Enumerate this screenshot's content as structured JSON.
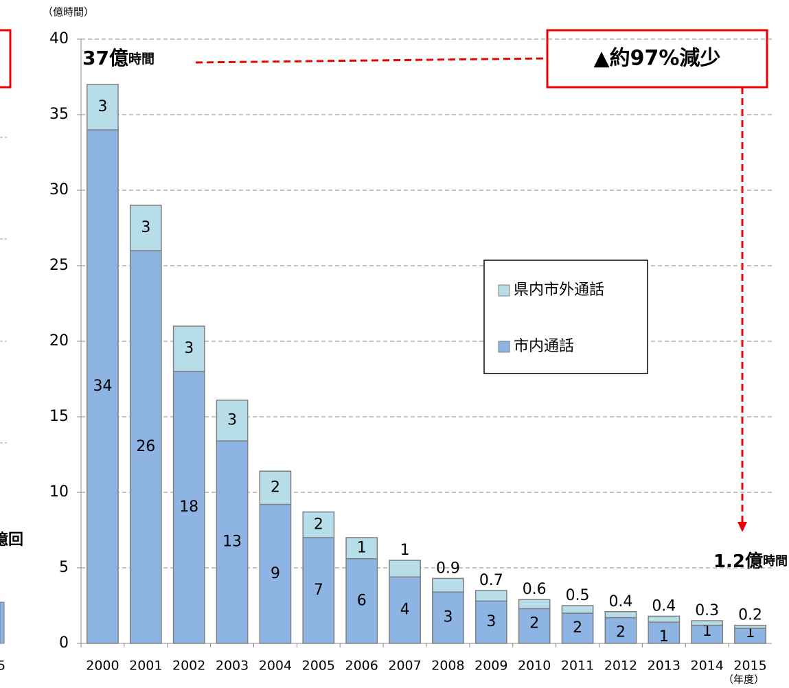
{
  "chart_data": {
    "type": "stacked-bar",
    "y_unit_label": "（億時間）",
    "x_unit_label": "（年度）",
    "categories": [
      "2000",
      "2001",
      "2002",
      "2003",
      "2004",
      "2005",
      "2006",
      "2007",
      "2008",
      "2009",
      "2010",
      "2011",
      "2012",
      "2013",
      "2014",
      "2015"
    ],
    "series": [
      {
        "name": "市内通話",
        "color": "#8eb4e3",
        "values": [
          34,
          26,
          18,
          13.4,
          9.2,
          7.0,
          5.6,
          4.4,
          3.4,
          2.8,
          2.3,
          2.0,
          1.7,
          1.4,
          1.2,
          1.0
        ],
        "value_labels": [
          "34",
          "26",
          "18",
          "13",
          "9",
          "7",
          "6",
          "4",
          "3",
          "3",
          "2",
          "2",
          "2",
          "1",
          "1",
          "1"
        ]
      },
      {
        "name": "県内市外通話",
        "color": "#b7dee8",
        "values": [
          3,
          3,
          3,
          2.7,
          2.2,
          1.7,
          1.4,
          1.1,
          0.9,
          0.7,
          0.6,
          0.5,
          0.4,
          0.4,
          0.3,
          0.2
        ],
        "value_labels": [
          "3",
          "3",
          "3",
          "3",
          "2",
          "2",
          "1",
          "1",
          "0.9",
          "0.7",
          "0.6",
          "0.5",
          "0.4",
          "0.4",
          "0.3",
          "0.2"
        ]
      }
    ],
    "ylim": [
      0,
      40
    ],
    "yticks": [
      0,
      5,
      10,
      15,
      20,
      25,
      30,
      35,
      40
    ],
    "grid": true,
    "annotations": {
      "start": {
        "number": "37億",
        "unit": "時間"
      },
      "change": "▲約97%減少",
      "end": {
        "number": "1.2億",
        "unit": "時間"
      }
    },
    "left_panel_fragments": [
      "億回",
      "5"
    ]
  }
}
